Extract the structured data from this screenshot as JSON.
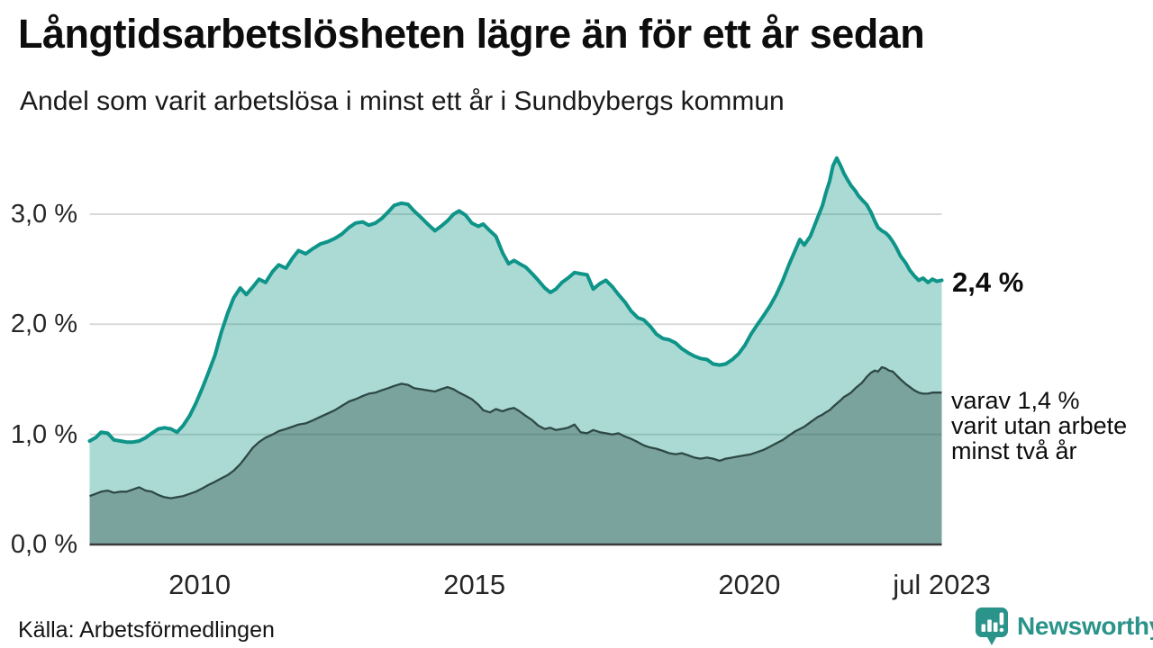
{
  "header": {
    "title": "Långtidsarbetslösheten lägre än för ett år sedan",
    "subtitle": "Andel som varit arbetslösa i minst ett år i Sundbybergs kommun"
  },
  "footer": {
    "source": "Källa: Arbetsförmedlingen",
    "logo_text": "Newsworthy"
  },
  "colors": {
    "series_total_line": "#0e9488",
    "series_total_fill": "rgba(14,148,136,0.35)",
    "series_two_years_line": "#2e4944",
    "series_two_years_fill": "rgba(46,73,68,0.38)",
    "gridline": "#d9d9d9",
    "axis_line": "#3a3a3a",
    "logo_teal": "#2a938a"
  },
  "chart_data": {
    "type": "area",
    "title": "Långtidsarbetslösheten lägre än för ett år sedan",
    "subtitle": "Andel som varit arbetslösa i minst ett år i Sundbybergs kommun",
    "y_unit": "%",
    "xlim": [
      2008.0,
      2023.5
    ],
    "ylim": [
      0,
      3.6
    ],
    "grid": "horizontal",
    "legend": "none",
    "y_ticks": [
      {
        "value": 0,
        "label": "0,0 %"
      },
      {
        "value": 1,
        "label": "1,0 %"
      },
      {
        "value": 2,
        "label": "2,0 %"
      },
      {
        "value": 3,
        "label": "3,0 %"
      }
    ],
    "x_ticks": [
      {
        "value": 2010,
        "label": "2010"
      },
      {
        "value": 2015,
        "label": "2015"
      },
      {
        "value": 2020,
        "label": "2020"
      },
      {
        "value": 2023.5,
        "label": "jul 2023"
      }
    ],
    "x": [
      2008.0,
      2008.11,
      2008.21,
      2008.33,
      2008.44,
      2008.56,
      2008.67,
      2008.79,
      2008.9,
      2009.02,
      2009.13,
      2009.25,
      2009.36,
      2009.48,
      2009.59,
      2009.7,
      2009.82,
      2009.93,
      2010.05,
      2010.16,
      2010.28,
      2010.39,
      2010.51,
      2010.62,
      2010.74,
      2010.85,
      2010.97,
      2011.08,
      2011.2,
      2011.33,
      2011.44,
      2011.57,
      2011.69,
      2011.8,
      2011.93,
      2012.07,
      2012.2,
      2012.33,
      2012.46,
      2012.59,
      2012.72,
      2012.84,
      2012.97,
      2013.08,
      2013.2,
      2013.31,
      2013.43,
      2013.54,
      2013.67,
      2013.79,
      2013.9,
      2014.03,
      2014.15,
      2014.28,
      2014.39,
      2014.51,
      2014.62,
      2014.72,
      2014.84,
      2014.95,
      2015.07,
      2015.16,
      2015.28,
      2015.39,
      2015.51,
      2015.62,
      2015.72,
      2015.82,
      2015.93,
      2016.05,
      2016.16,
      2016.28,
      2016.38,
      2016.48,
      2016.59,
      2016.7,
      2016.82,
      2016.93,
      2017.05,
      2017.16,
      2017.28,
      2017.39,
      2017.51,
      2017.62,
      2017.74,
      2017.85,
      2017.97,
      2018.08,
      2018.2,
      2018.31,
      2018.43,
      2018.54,
      2018.66,
      2018.77,
      2018.89,
      2019.0,
      2019.11,
      2019.23,
      2019.34,
      2019.46,
      2019.57,
      2019.69,
      2019.8,
      2019.92,
      2020.03,
      2020.15,
      2020.26,
      2020.38,
      2020.49,
      2020.61,
      2020.72,
      2020.84,
      2020.92,
      2021.0,
      2021.11,
      2021.25,
      2021.33,
      2021.39,
      2021.46,
      2021.52,
      2021.59,
      2021.66,
      2021.72,
      2021.79,
      2021.85,
      2021.93,
      2021.98,
      2022.05,
      2022.13,
      2022.21,
      2022.28,
      2022.34,
      2022.41,
      2022.48,
      2022.54,
      2022.61,
      2022.67,
      2022.75,
      2022.84,
      2022.92,
      2023.0,
      2023.08,
      2023.16,
      2023.25,
      2023.33,
      2023.41,
      2023.5
    ],
    "series": [
      {
        "name": "Arbetslösa minst ett år",
        "end_label": "2,4 %",
        "values": [
          0.94,
          0.97,
          1.02,
          1.01,
          0.95,
          0.94,
          0.93,
          0.93,
          0.94,
          0.97,
          1.01,
          1.05,
          1.06,
          1.05,
          1.02,
          1.08,
          1.17,
          1.28,
          1.42,
          1.56,
          1.72,
          1.92,
          2.1,
          2.24,
          2.33,
          2.27,
          2.34,
          2.41,
          2.38,
          2.48,
          2.54,
          2.51,
          2.6,
          2.67,
          2.64,
          2.69,
          2.73,
          2.75,
          2.78,
          2.82,
          2.88,
          2.92,
          2.93,
          2.9,
          2.92,
          2.96,
          3.02,
          3.08,
          3.1,
          3.09,
          3.03,
          2.97,
          2.91,
          2.85,
          2.89,
          2.94,
          3.0,
          3.03,
          2.99,
          2.92,
          2.89,
          2.91,
          2.85,
          2.8,
          2.65,
          2.55,
          2.58,
          2.55,
          2.52,
          2.46,
          2.4,
          2.33,
          2.29,
          2.32,
          2.38,
          2.42,
          2.47,
          2.46,
          2.45,
          2.32,
          2.37,
          2.4,
          2.34,
          2.27,
          2.2,
          2.12,
          2.06,
          2.04,
          1.98,
          1.91,
          1.87,
          1.86,
          1.83,
          1.78,
          1.74,
          1.71,
          1.69,
          1.68,
          1.64,
          1.63,
          1.64,
          1.68,
          1.73,
          1.81,
          1.91,
          2.0,
          2.08,
          2.17,
          2.27,
          2.4,
          2.54,
          2.68,
          2.77,
          2.72,
          2.8,
          2.98,
          3.08,
          3.19,
          3.3,
          3.44,
          3.51,
          3.44,
          3.37,
          3.31,
          3.26,
          3.21,
          3.17,
          3.13,
          3.09,
          3.02,
          2.94,
          2.88,
          2.85,
          2.83,
          2.8,
          2.75,
          2.7,
          2.62,
          2.56,
          2.49,
          2.44,
          2.4,
          2.42,
          2.38,
          2.41,
          2.39,
          2.4
        ]
      },
      {
        "name": "varav arbetslösa minst två år",
        "end_label_lines": [
          "varav 1,4 %",
          "varit utan arbete",
          "minst två år"
        ],
        "values": [
          0.44,
          0.46,
          0.48,
          0.49,
          0.47,
          0.48,
          0.48,
          0.5,
          0.52,
          0.49,
          0.48,
          0.45,
          0.43,
          0.42,
          0.43,
          0.44,
          0.46,
          0.48,
          0.51,
          0.54,
          0.57,
          0.6,
          0.63,
          0.67,
          0.73,
          0.8,
          0.88,
          0.93,
          0.97,
          1.0,
          1.03,
          1.05,
          1.07,
          1.09,
          1.1,
          1.13,
          1.16,
          1.19,
          1.22,
          1.26,
          1.3,
          1.32,
          1.35,
          1.37,
          1.38,
          1.4,
          1.42,
          1.44,
          1.46,
          1.45,
          1.42,
          1.41,
          1.4,
          1.39,
          1.41,
          1.43,
          1.41,
          1.38,
          1.35,
          1.32,
          1.27,
          1.22,
          1.2,
          1.23,
          1.21,
          1.23,
          1.24,
          1.21,
          1.17,
          1.13,
          1.08,
          1.05,
          1.06,
          1.04,
          1.05,
          1.06,
          1.09,
          1.02,
          1.01,
          1.04,
          1.02,
          1.01,
          1.0,
          1.01,
          0.98,
          0.96,
          0.93,
          0.9,
          0.88,
          0.87,
          0.85,
          0.83,
          0.82,
          0.83,
          0.81,
          0.79,
          0.78,
          0.79,
          0.78,
          0.76,
          0.78,
          0.79,
          0.8,
          0.81,
          0.82,
          0.84,
          0.86,
          0.89,
          0.92,
          0.95,
          0.99,
          1.03,
          1.05,
          1.07,
          1.11,
          1.16,
          1.18,
          1.2,
          1.22,
          1.25,
          1.28,
          1.31,
          1.34,
          1.36,
          1.38,
          1.42,
          1.44,
          1.47,
          1.52,
          1.56,
          1.58,
          1.57,
          1.61,
          1.6,
          1.58,
          1.57,
          1.54,
          1.5,
          1.46,
          1.43,
          1.4,
          1.38,
          1.37,
          1.37,
          1.38,
          1.38,
          1.38
        ]
      }
    ]
  }
}
